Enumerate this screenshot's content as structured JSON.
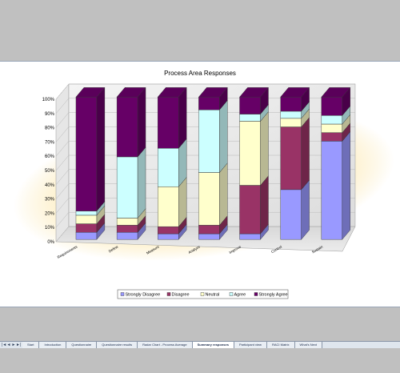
{
  "chart_data": {
    "type": "bar",
    "stacked": true,
    "percent_stacked": true,
    "three_d": true,
    "title": "Process Area Responses",
    "categories": [
      "Requirements",
      "Define",
      "Measure",
      "Analyze",
      "Improve",
      "Control",
      "Sustain"
    ],
    "y_tick_labels": [
      "0%",
      "10%",
      "20%",
      "30%",
      "40%",
      "50%",
      "60%",
      "70%",
      "80%",
      "90%",
      "100%"
    ],
    "ylim": [
      0,
      100
    ],
    "series": [
      {
        "name": "Strongly Disagree",
        "color": "#9999ff",
        "values": [
          5,
          5,
          4,
          4,
          4,
          35,
          69
        ]
      },
      {
        "name": "Disagree",
        "color": "#993366",
        "values": [
          6,
          5,
          5,
          6,
          34,
          44,
          6
        ]
      },
      {
        "name": "Neutral",
        "color": "#ffffcc",
        "values": [
          6,
          5,
          28,
          37,
          45,
          6,
          6
        ]
      },
      {
        "name": "Agree",
        "color": "#ccffff",
        "values": [
          3,
          43,
          27,
          44,
          5,
          5,
          6
        ]
      },
      {
        "name": "Strongly Agree",
        "color": "#660066",
        "values": [
          80,
          42,
          36,
          9,
          12,
          10,
          13
        ]
      }
    ],
    "legend_position": "bottom",
    "gridlines": true
  },
  "sheet_tabs": [
    "Start",
    "Introduction",
    "Questionnaire",
    "Questionnaire results",
    "Radar Chart - Process Average",
    "Summary responses",
    "Participant view",
    "RACI Matrix",
    "What's Next"
  ],
  "active_tab": "Summary responses",
  "tab_nav_icons": [
    "first-sheet-icon",
    "prev-sheet-icon",
    "next-sheet-icon",
    "last-sheet-icon"
  ]
}
